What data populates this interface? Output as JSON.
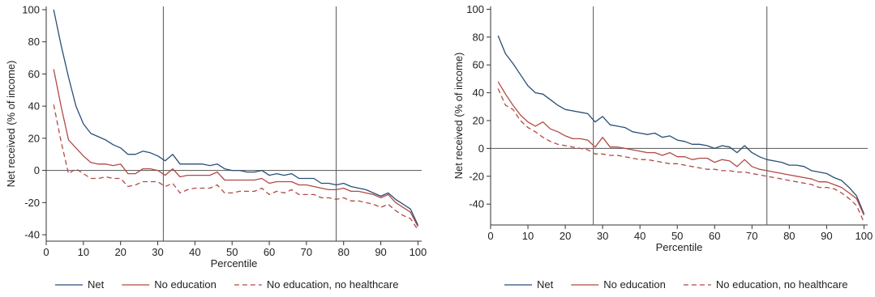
{
  "chart_data": [
    {
      "type": "line",
      "xlabel": "Percentile",
      "ylabel": "Net received (% of income)",
      "xlim": [
        0,
        101
      ],
      "ylim": [
        -44,
        102
      ],
      "xticks": [
        0,
        10,
        20,
        30,
        40,
        50,
        60,
        70,
        80,
        90,
        100
      ],
      "yticks": [
        -40,
        -20,
        0,
        20,
        40,
        60,
        80,
        100
      ],
      "reference_lines": {
        "vertical": [
          31.5,
          78
        ],
        "horizontal": [
          0
        ]
      },
      "legend": {
        "placement": "bottom",
        "entries": [
          "Net",
          "No education",
          "No education, no healthcare"
        ]
      },
      "series": [
        {
          "name": "Net",
          "style": "solid",
          "color": "#2a4e78",
          "x": [
            2,
            4,
            6,
            8,
            10,
            12,
            14,
            16,
            18,
            20,
            22,
            24,
            26,
            28,
            30,
            32,
            34,
            36,
            38,
            40,
            42,
            44,
            46,
            48,
            50,
            52,
            54,
            56,
            58,
            60,
            62,
            64,
            66,
            68,
            70,
            72,
            74,
            76,
            78,
            80,
            82,
            84,
            86,
            88,
            90,
            92,
            94,
            96,
            98,
            100
          ],
          "y": [
            100,
            78,
            58,
            40,
            29,
            23,
            21,
            19,
            16,
            14,
            10,
            10,
            12,
            11,
            9,
            6,
            10,
            4,
            4,
            4,
            4,
            3,
            4,
            1,
            0,
            0,
            -1,
            -1,
            0,
            -3,
            -2,
            -3,
            -2,
            -5,
            -5,
            -5,
            -8,
            -8,
            -9,
            -8,
            -10,
            -11,
            -12,
            -14,
            -16,
            -14,
            -18,
            -21,
            -24,
            -34
          ]
        },
        {
          "name": "No education",
          "style": "solid",
          "color": "#b04a45",
          "x": [
            2,
            4,
            6,
            8,
            10,
            12,
            14,
            16,
            18,
            20,
            22,
            24,
            26,
            28,
            30,
            32,
            34,
            36,
            38,
            40,
            42,
            44,
            46,
            48,
            50,
            52,
            54,
            56,
            58,
            60,
            62,
            64,
            66,
            68,
            70,
            72,
            74,
            76,
            78,
            80,
            82,
            84,
            86,
            88,
            90,
            92,
            94,
            96,
            98,
            100
          ],
          "y": [
            63,
            40,
            19,
            14,
            9,
            5,
            4,
            4,
            3,
            4,
            -2,
            -2,
            1,
            1,
            0,
            -3,
            1,
            -4,
            -3,
            -3,
            -3,
            -3,
            -1,
            -6,
            -6,
            -6,
            -6,
            -6,
            -5,
            -8,
            -7,
            -7,
            -7,
            -9,
            -9,
            -10,
            -11,
            -12,
            -12,
            -11,
            -13,
            -13,
            -14,
            -15,
            -17,
            -15,
            -20,
            -23,
            -26,
            -35
          ]
        },
        {
          "name": "No education, no healthcare",
          "style": "dashed",
          "color": "#b04a45",
          "x": [
            2,
            4,
            6,
            8,
            10,
            12,
            14,
            16,
            18,
            20,
            22,
            24,
            26,
            28,
            30,
            32,
            34,
            36,
            38,
            40,
            42,
            44,
            46,
            48,
            50,
            52,
            54,
            56,
            58,
            60,
            62,
            64,
            66,
            68,
            70,
            72,
            74,
            76,
            78,
            80,
            82,
            84,
            86,
            88,
            90,
            92,
            94,
            96,
            98,
            100
          ],
          "y": [
            41,
            18,
            -2,
            1,
            -2,
            -5,
            -5,
            -4,
            -5,
            -5,
            -10,
            -9,
            -7,
            -7,
            -7,
            -10,
            -8,
            -14,
            -12,
            -11,
            -11,
            -11,
            -9,
            -14,
            -14,
            -13,
            -13,
            -13,
            -11,
            -15,
            -13,
            -14,
            -12,
            -15,
            -15,
            -15,
            -17,
            -17,
            -18,
            -17,
            -19,
            -19,
            -20,
            -21,
            -23,
            -21,
            -25,
            -28,
            -30,
            -37
          ]
        }
      ]
    },
    {
      "type": "line",
      "xlabel": "Percentile",
      "ylabel": "Net received (% of income)",
      "xlim": [
        0,
        101
      ],
      "ylim": [
        -55,
        102
      ],
      "xticks": [
        0,
        10,
        20,
        30,
        40,
        50,
        60,
        70,
        80,
        90,
        100
      ],
      "yticks": [
        -40,
        -20,
        0,
        20,
        40,
        60,
        80,
        100
      ],
      "reference_lines": {
        "vertical": [
          27.5,
          74
        ],
        "horizontal": [
          0
        ]
      },
      "legend": {
        "placement": "bottom",
        "entries": [
          "Net",
          "No education",
          "No education, no healthcare"
        ]
      },
      "series": [
        {
          "name": "Net",
          "style": "solid",
          "color": "#2a4e78",
          "x": [
            2,
            4,
            6,
            8,
            10,
            12,
            14,
            16,
            18,
            20,
            22,
            24,
            26,
            28,
            30,
            32,
            34,
            36,
            38,
            40,
            42,
            44,
            46,
            48,
            50,
            52,
            54,
            56,
            58,
            60,
            62,
            64,
            66,
            68,
            70,
            72,
            74,
            76,
            78,
            80,
            82,
            84,
            86,
            88,
            90,
            92,
            94,
            96,
            98,
            100
          ],
          "y": [
            81,
            68,
            61,
            53,
            45,
            40,
            39,
            35,
            31,
            28,
            27,
            26,
            25,
            19,
            23,
            17,
            16,
            15,
            12,
            11,
            10,
            11,
            8,
            9,
            6,
            5,
            3,
            3,
            2,
            0,
            2,
            1,
            -3,
            2,
            -3,
            -6,
            -8,
            -9,
            -10,
            -12,
            -12,
            -13,
            -16,
            -17,
            -18,
            -21,
            -23,
            -28,
            -34,
            -47
          ]
        },
        {
          "name": "No education",
          "style": "solid",
          "color": "#b04a45",
          "x": [
            2,
            4,
            6,
            8,
            10,
            12,
            14,
            16,
            18,
            20,
            22,
            24,
            26,
            28,
            30,
            32,
            34,
            36,
            38,
            40,
            42,
            44,
            46,
            48,
            50,
            52,
            54,
            56,
            58,
            60,
            62,
            64,
            66,
            68,
            70,
            72,
            74,
            76,
            78,
            80,
            82,
            84,
            86,
            88,
            90,
            92,
            94,
            96,
            98,
            100
          ],
          "y": [
            48,
            39,
            31,
            24,
            19,
            16,
            19,
            14,
            12,
            9,
            7,
            7,
            6,
            1,
            8,
            1,
            1,
            0,
            -1,
            -2,
            -3,
            -3,
            -5,
            -3,
            -6,
            -6,
            -8,
            -7,
            -7,
            -10,
            -8,
            -9,
            -13,
            -8,
            -13,
            -15,
            -16,
            -17,
            -18,
            -19,
            -20,
            -21,
            -22,
            -24,
            -24,
            -26,
            -28,
            -32,
            -36,
            -48
          ]
        },
        {
          "name": "No education, no healthcare",
          "style": "dashed",
          "color": "#b04a45",
          "x": [
            2,
            4,
            6,
            8,
            10,
            12,
            14,
            16,
            18,
            20,
            22,
            24,
            26,
            28,
            30,
            32,
            34,
            36,
            38,
            40,
            42,
            44,
            46,
            48,
            50,
            52,
            54,
            56,
            58,
            60,
            62,
            64,
            66,
            68,
            70,
            72,
            74,
            76,
            78,
            80,
            82,
            84,
            86,
            88,
            90,
            92,
            94,
            96,
            98,
            100
          ],
          "y": [
            43,
            31,
            28,
            20,
            15,
            12,
            8,
            5,
            3,
            2,
            1,
            0,
            -1,
            -4,
            -4,
            -5,
            -5,
            -6,
            -7,
            -8,
            -8,
            -9,
            -10,
            -11,
            -11,
            -12,
            -13,
            -14,
            -15,
            -15,
            -16,
            -16,
            -17,
            -17,
            -18,
            -19,
            -20,
            -21,
            -22,
            -23,
            -24,
            -25,
            -26,
            -28,
            -28,
            -29,
            -32,
            -36,
            -41,
            -53
          ]
        }
      ]
    }
  ]
}
